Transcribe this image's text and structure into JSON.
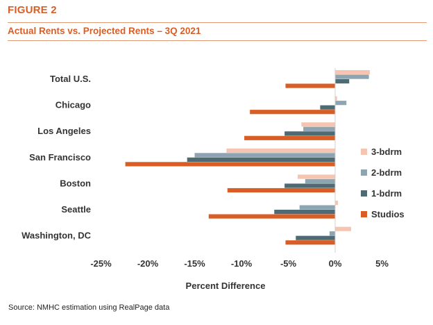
{
  "figure_label": "FIGURE 2",
  "title": "Actual Rents vs. Projected Rents – 3Q 2021",
  "source": "Source: NMHC estimation using RealPage data",
  "colors": {
    "accent": "#d85e26",
    "3-bdrm": "#f5c5b2",
    "2-bdrm": "#8ea4b1",
    "1-bdrm": "#4e6b73",
    "Studios": "#d85e26"
  },
  "chart_data": {
    "type": "bar",
    "orientation": "horizontal",
    "categories": [
      "Total U.S.",
      "Chicago",
      "Los Angeles",
      "San Francisco",
      "Boston",
      "Seattle",
      "Washington, DC"
    ],
    "series": [
      {
        "name": "3-bdrm",
        "values": [
          3.7,
          0.2,
          -3.6,
          -11.6,
          -4.0,
          0.3,
          1.7
        ]
      },
      {
        "name": "2-bdrm",
        "values": [
          3.6,
          1.2,
          -3.4,
          -15.0,
          -3.2,
          -3.8,
          -0.6
        ]
      },
      {
        "name": "1-bdrm",
        "values": [
          1.5,
          -1.6,
          -5.4,
          -15.8,
          -5.4,
          -6.5,
          -4.2
        ]
      },
      {
        "name": "Studios",
        "values": [
          -5.3,
          -9.1,
          -9.7,
          -22.4,
          -11.5,
          -13.5,
          -5.3
        ]
      }
    ],
    "xlabel": "Percent Difference",
    "xlim": [
      -25,
      5
    ],
    "xticks": [
      -25,
      -20,
      -15,
      -10,
      -5,
      0,
      5
    ],
    "xtick_labels": [
      "-25%",
      "-20%",
      "-15%",
      "-10%",
      "-5%",
      "0%",
      "5%"
    ],
    "grid": false,
    "legend_position": "right"
  }
}
